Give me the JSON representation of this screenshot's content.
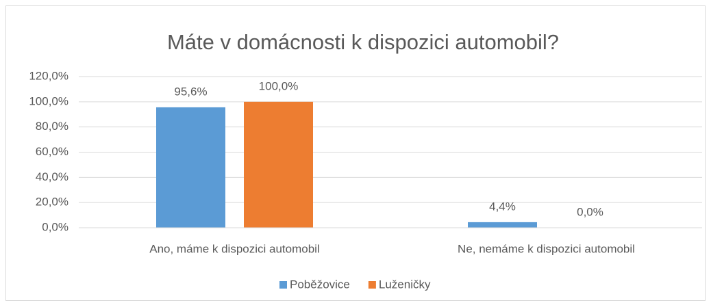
{
  "chart_data": {
    "type": "bar",
    "title": "Máte v domácnosti k dispozici automobil?",
    "categories": [
      "Ano, máme k dispozici automobil",
      "Ne, nemáme k dispozici automobil"
    ],
    "series": [
      {
        "name": "Poběžovice",
        "color": "#5b9bd5",
        "values": [
          95.6,
          4.4
        ],
        "value_labels": [
          "95,6%",
          "4,4%"
        ]
      },
      {
        "name": "Luženičky",
        "color": "#ed7d31",
        "values": [
          100,
          0
        ],
        "value_labels": [
          "100,0%",
          "0,0%"
        ]
      }
    ],
    "ylim": [
      0,
      120
    ],
    "yticks": [
      {
        "value": 0,
        "label": "0,0%"
      },
      {
        "value": 20,
        "label": "20,0%"
      },
      {
        "value": 40,
        "label": "40,0%"
      },
      {
        "value": 60,
        "label": "60,0%"
      },
      {
        "value": 80,
        "label": "80,0%"
      },
      {
        "value": 100,
        "label": "100,0%"
      },
      {
        "value": 120,
        "label": "120,0%"
      }
    ],
    "grid": true,
    "legend": "bottom"
  }
}
